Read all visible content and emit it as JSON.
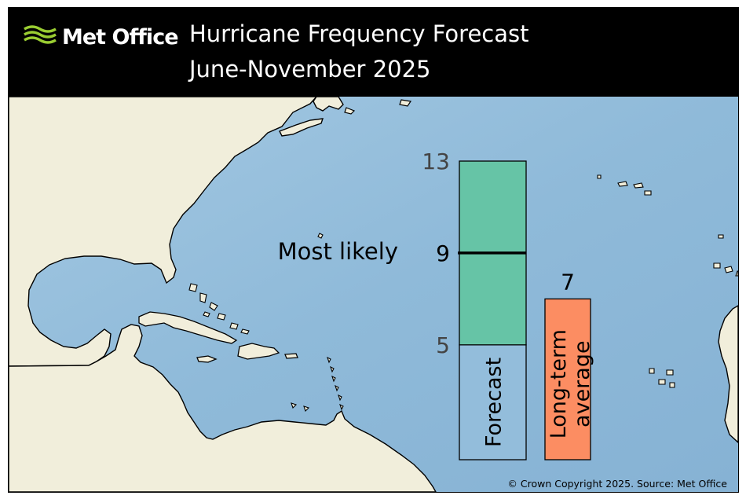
{
  "header": {
    "brand": "Met Office",
    "title": "Hurricane Frequency Forecast",
    "subtitle": "June-November 2025"
  },
  "chart_data": {
    "type": "bar",
    "categories": [
      "Forecast",
      "Long-term average"
    ],
    "forecast": {
      "label": "Forecast",
      "low": 5,
      "high": 13,
      "most_likely": 9,
      "most_likely_label": "Most likely"
    },
    "long_term_average": {
      "label_line1": "Long-term",
      "label_line2": "average",
      "value": 7,
      "value_label": "7"
    },
    "ticks": {
      "low": "5",
      "most_likely": "9",
      "high": "13"
    },
    "ylim": [
      0,
      13
    ]
  },
  "colors": {
    "forecast_range": "#66c4a6",
    "average_bar": "#fc8d62",
    "ocean": "#93bddb",
    "land": "#f1eedb",
    "logo": "#9acd32"
  },
  "footer": {
    "copyright": "© Crown Copyright 2025. Source: Met Office"
  }
}
